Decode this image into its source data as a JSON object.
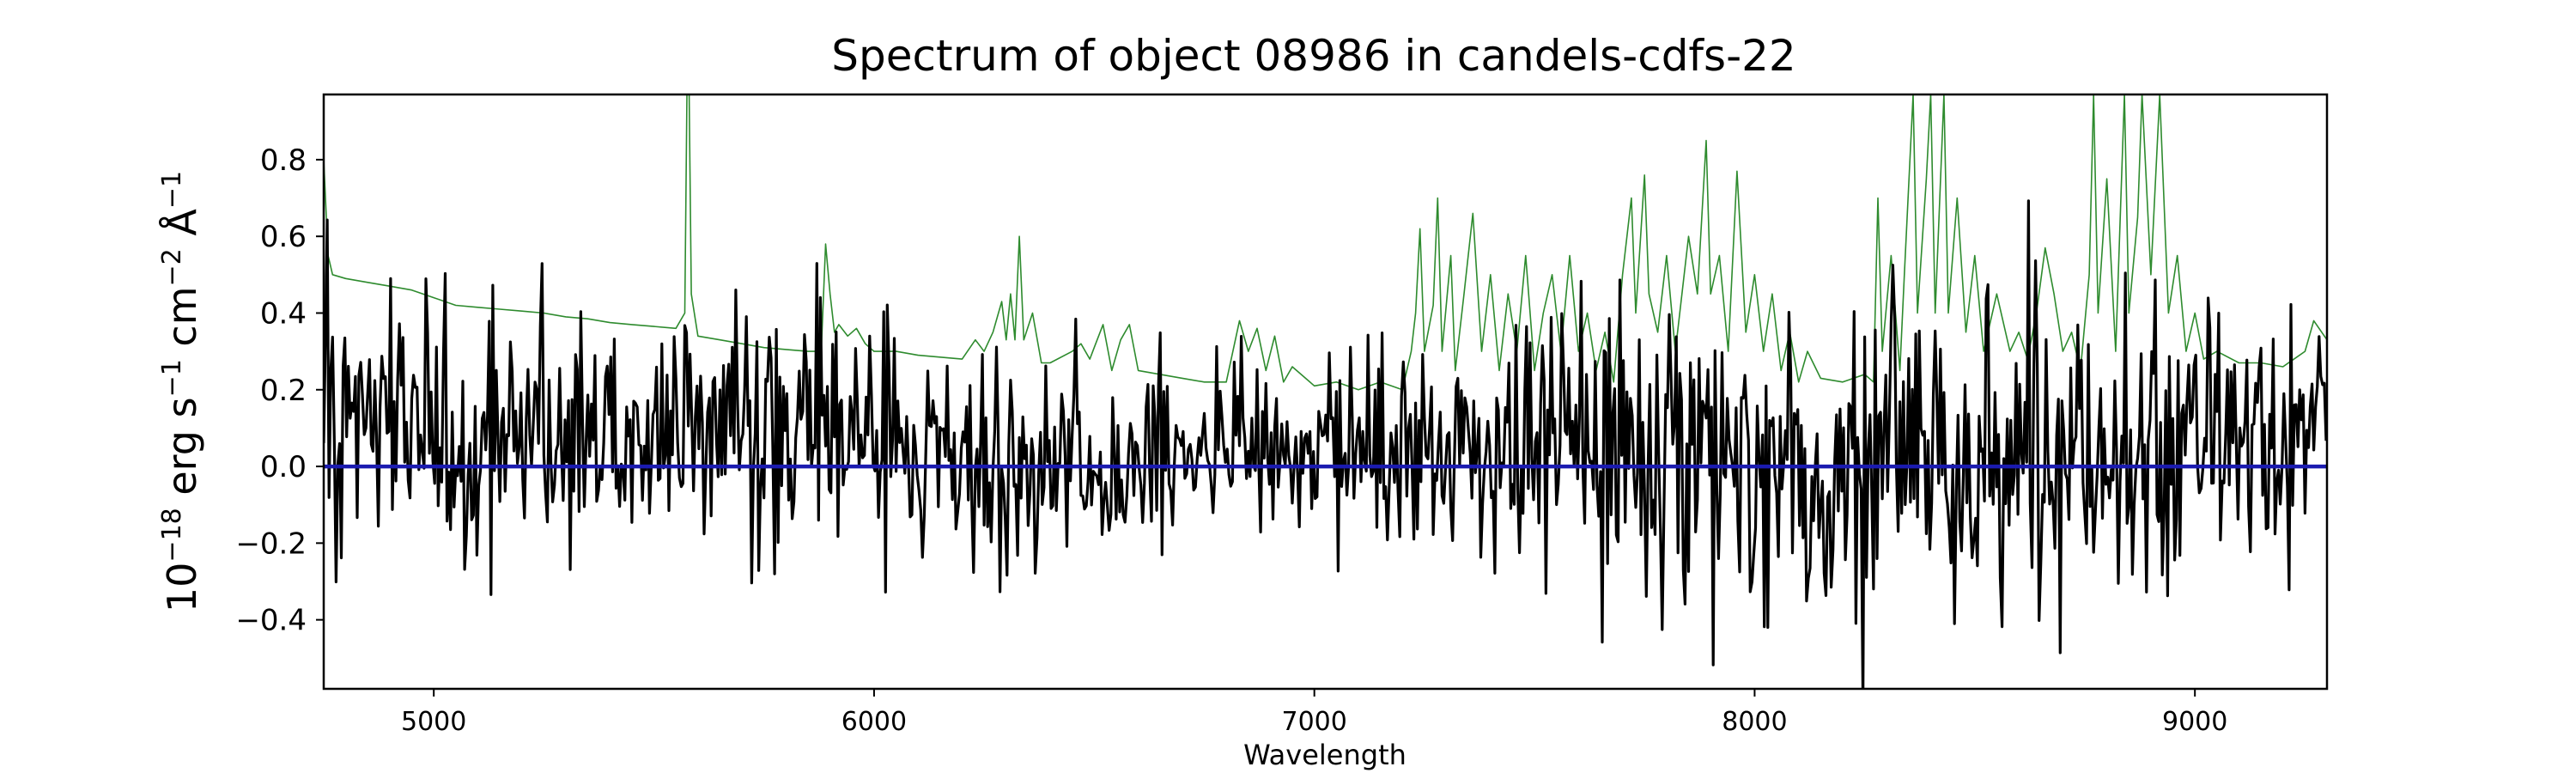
{
  "chart_data": {
    "type": "line",
    "title": "Spectrum of object 08986 in candels-cdfs-22",
    "xlabel": "Wavelength",
    "ylabel": {
      "base": "10",
      "exp_base": "−18",
      "part1": " erg s",
      "exp1": "−1",
      "part2": " cm",
      "exp2": "−2",
      "part3": " Å",
      "exp3": "−1"
    },
    "xlim": [
      4750,
      9300
    ],
    "ylim": [
      -0.58,
      0.97
    ],
    "x_ticks": [
      5000,
      6000,
      7000,
      8000,
      9000
    ],
    "x_tick_labels": [
      "5000",
      "6000",
      "7000",
      "8000",
      "9000"
    ],
    "y_ticks": [
      -0.4,
      -0.2,
      0.0,
      0.2,
      0.4,
      0.6,
      0.8
    ],
    "y_tick_labels": [
      "−0.4",
      "−0.2",
      "0.0",
      "0.2",
      "0.4",
      "0.6",
      "0.8"
    ],
    "grid": false,
    "series": [
      {
        "role": "error-spectrum",
        "color": "#2e8b2e",
        "points": [
          [
            4750,
            0.8
          ],
          [
            4760,
            0.55
          ],
          [
            4770,
            0.5
          ],
          [
            4800,
            0.49
          ],
          [
            4850,
            0.48
          ],
          [
            4900,
            0.47
          ],
          [
            4950,
            0.46
          ],
          [
            5000,
            0.44
          ],
          [
            5050,
            0.42
          ],
          [
            5100,
            0.415
          ],
          [
            5150,
            0.41
          ],
          [
            5200,
            0.405
          ],
          [
            5250,
            0.4
          ],
          [
            5300,
            0.39
          ],
          [
            5350,
            0.385
          ],
          [
            5400,
            0.375
          ],
          [
            5450,
            0.37
          ],
          [
            5500,
            0.365
          ],
          [
            5550,
            0.36
          ],
          [
            5570,
            0.4
          ],
          [
            5575,
            0.97
          ],
          [
            5580,
            0.97
          ],
          [
            5585,
            0.45
          ],
          [
            5600,
            0.34
          ],
          [
            5650,
            0.33
          ],
          [
            5700,
            0.32
          ],
          [
            5750,
            0.31
          ],
          [
            5800,
            0.305
          ],
          [
            5850,
            0.3
          ],
          [
            5880,
            0.3
          ],
          [
            5890,
            0.58
          ],
          [
            5900,
            0.45
          ],
          [
            5910,
            0.35
          ],
          [
            5920,
            0.37
          ],
          [
            5940,
            0.34
          ],
          [
            5960,
            0.36
          ],
          [
            5980,
            0.32
          ],
          [
            6000,
            0.3
          ],
          [
            6050,
            0.3
          ],
          [
            6100,
            0.29
          ],
          [
            6150,
            0.285
          ],
          [
            6200,
            0.28
          ],
          [
            6230,
            0.33
          ],
          [
            6250,
            0.3
          ],
          [
            6270,
            0.35
          ],
          [
            6290,
            0.43
          ],
          [
            6300,
            0.33
          ],
          [
            6310,
            0.45
          ],
          [
            6320,
            0.33
          ],
          [
            6330,
            0.6
          ],
          [
            6340,
            0.33
          ],
          [
            6360,
            0.4
          ],
          [
            6380,
            0.27
          ],
          [
            6400,
            0.27
          ],
          [
            6450,
            0.3
          ],
          [
            6470,
            0.32
          ],
          [
            6490,
            0.28
          ],
          [
            6500,
            0.31
          ],
          [
            6520,
            0.37
          ],
          [
            6540,
            0.25
          ],
          [
            6560,
            0.33
          ],
          [
            6580,
            0.37
          ],
          [
            6600,
            0.25
          ],
          [
            6650,
            0.24
          ],
          [
            6700,
            0.23
          ],
          [
            6750,
            0.22
          ],
          [
            6800,
            0.22
          ],
          [
            6830,
            0.38
          ],
          [
            6850,
            0.3
          ],
          [
            6870,
            0.36
          ],
          [
            6890,
            0.25
          ],
          [
            6910,
            0.34
          ],
          [
            6930,
            0.22
          ],
          [
            6950,
            0.26
          ],
          [
            7000,
            0.21
          ],
          [
            7050,
            0.22
          ],
          [
            7100,
            0.2
          ],
          [
            7150,
            0.22
          ],
          [
            7200,
            0.2
          ],
          [
            7220,
            0.3
          ],
          [
            7230,
            0.4
          ],
          [
            7240,
            0.62
          ],
          [
            7250,
            0.3
          ],
          [
            7270,
            0.42
          ],
          [
            7280,
            0.7
          ],
          [
            7290,
            0.3
          ],
          [
            7310,
            0.55
          ],
          [
            7320,
            0.25
          ],
          [
            7340,
            0.45
          ],
          [
            7360,
            0.66
          ],
          [
            7380,
            0.3
          ],
          [
            7400,
            0.5
          ],
          [
            7420,
            0.25
          ],
          [
            7440,
            0.45
          ],
          [
            7460,
            0.3
          ],
          [
            7480,
            0.55
          ],
          [
            7500,
            0.25
          ],
          [
            7520,
            0.4
          ],
          [
            7540,
            0.5
          ],
          [
            7560,
            0.3
          ],
          [
            7580,
            0.55
          ],
          [
            7600,
            0.3
          ],
          [
            7620,
            0.4
          ],
          [
            7640,
            0.25
          ],
          [
            7660,
            0.35
          ],
          [
            7680,
            0.22
          ],
          [
            7700,
            0.5
          ],
          [
            7720,
            0.7
          ],
          [
            7730,
            0.4
          ],
          [
            7750,
            0.76
          ],
          [
            7760,
            0.45
          ],
          [
            7780,
            0.35
          ],
          [
            7800,
            0.55
          ],
          [
            7820,
            0.3
          ],
          [
            7850,
            0.6
          ],
          [
            7870,
            0.45
          ],
          [
            7890,
            0.85
          ],
          [
            7900,
            0.45
          ],
          [
            7920,
            0.55
          ],
          [
            7940,
            0.3
          ],
          [
            7960,
            0.77
          ],
          [
            7980,
            0.35
          ],
          [
            8000,
            0.5
          ],
          [
            8020,
            0.3
          ],
          [
            8040,
            0.45
          ],
          [
            8060,
            0.25
          ],
          [
            8080,
            0.35
          ],
          [
            8100,
            0.22
          ],
          [
            8120,
            0.3
          ],
          [
            8150,
            0.23
          ],
          [
            8200,
            0.22
          ],
          [
            8250,
            0.24
          ],
          [
            8270,
            0.22
          ],
          [
            8280,
            0.7
          ],
          [
            8290,
            0.3
          ],
          [
            8310,
            0.55
          ],
          [
            8330,
            0.25
          ],
          [
            8340,
            0.5
          ],
          [
            8360,
            0.97
          ],
          [
            8370,
            0.4
          ],
          [
            8390,
            0.75
          ],
          [
            8400,
            0.97
          ],
          [
            8410,
            0.4
          ],
          [
            8430,
            0.97
          ],
          [
            8440,
            0.4
          ],
          [
            8460,
            0.7
          ],
          [
            8480,
            0.35
          ],
          [
            8500,
            0.55
          ],
          [
            8520,
            0.3
          ],
          [
            8550,
            0.45
          ],
          [
            8580,
            0.3
          ],
          [
            8600,
            0.35
          ],
          [
            8620,
            0.28
          ],
          [
            8640,
            0.4
          ],
          [
            8660,
            0.57
          ],
          [
            8680,
            0.45
          ],
          [
            8700,
            0.3
          ],
          [
            8720,
            0.35
          ],
          [
            8740,
            0.25
          ],
          [
            8760,
            0.5
          ],
          [
            8770,
            0.97
          ],
          [
            8780,
            0.4
          ],
          [
            8800,
            0.75
          ],
          [
            8820,
            0.3
          ],
          [
            8840,
            0.97
          ],
          [
            8850,
            0.4
          ],
          [
            8870,
            0.65
          ],
          [
            8880,
            0.97
          ],
          [
            8900,
            0.5
          ],
          [
            8920,
            0.97
          ],
          [
            8940,
            0.4
          ],
          [
            8960,
            0.55
          ],
          [
            8980,
            0.3
          ],
          [
            9000,
            0.4
          ],
          [
            9020,
            0.28
          ],
          [
            9050,
            0.3
          ],
          [
            9100,
            0.27
          ],
          [
            9150,
            0.27
          ],
          [
            9200,
            0.26
          ],
          [
            9250,
            0.3
          ],
          [
            9270,
            0.38
          ],
          [
            9300,
            0.33
          ]
        ]
      },
      {
        "role": "flux",
        "color": "#000000",
        "seed": 8986,
        "step": 4,
        "mean": [
          [
            4750,
            0.12
          ],
          [
            5500,
            0.08
          ],
          [
            6000,
            0.05
          ],
          [
            6500,
            0.0
          ],
          [
            7000,
            0.05
          ],
          [
            7500,
            0.05
          ],
          [
            8000,
            0.0
          ],
          [
            8500,
            0.02
          ],
          [
            9000,
            0.08
          ],
          [
            9300,
            0.12
          ]
        ],
        "sigma": [
          [
            4750,
            0.2
          ],
          [
            5500,
            0.18
          ],
          [
            6500,
            0.15
          ],
          [
            7200,
            0.15
          ],
          [
            7500,
            0.2
          ],
          [
            8000,
            0.22
          ],
          [
            8400,
            0.25
          ],
          [
            9000,
            0.22
          ],
          [
            9300,
            0.15
          ]
        ]
      },
      {
        "role": "zero-model",
        "color": "#1b1bb0",
        "points": [
          [
            4750,
            0.0
          ],
          [
            9300,
            0.0
          ]
        ]
      }
    ]
  }
}
